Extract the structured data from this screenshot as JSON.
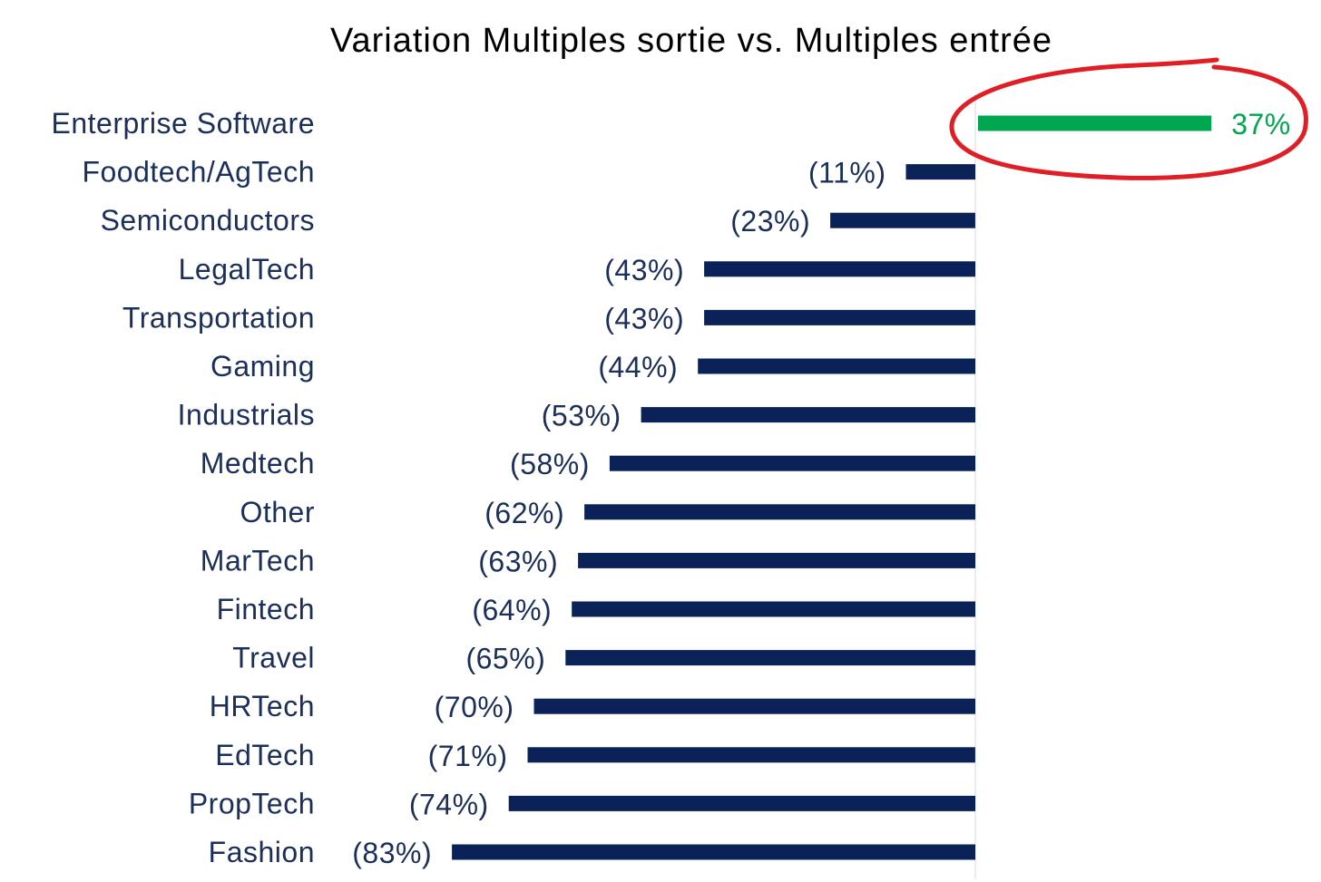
{
  "chart_data": {
    "type": "bar",
    "orientation": "horizontal",
    "title": "Variation Multiples sortie vs. Multiples entrée",
    "xlabel": "",
    "ylabel": "",
    "unit": "%",
    "xlim": [
      -83,
      37
    ],
    "grid": false,
    "legend": "none",
    "categories": [
      "Enterprise Software",
      "Foodtech/AgTech",
      "Semiconductors",
      "LegalTech",
      "Transportation",
      "Gaming",
      "Industrials",
      "Medtech",
      "Other",
      "MarTech",
      "Fintech",
      "Travel",
      "HRTech",
      "EdTech",
      "PropTech",
      "Fashion"
    ],
    "values": [
      37,
      -11,
      -23,
      -43,
      -43,
      -44,
      -53,
      -58,
      -62,
      -63,
      -64,
      -65,
      -70,
      -71,
      -74,
      -83
    ],
    "data_labels": [
      "37%",
      "(11%)",
      "(23%)",
      "(43%)",
      "(43%)",
      "(44%)",
      "(53%)",
      "(58%)",
      "(62%)",
      "(63%)",
      "(64%)",
      "(65%)",
      "(70%)",
      "(71%)",
      "(74%)",
      "(83%)"
    ],
    "colors": {
      "positive": "#00a650",
      "negative": "#0b2258",
      "label_text": "#1c2e5a",
      "highlight_circle": "#e01e26",
      "zero_line": "#e6e6e6"
    },
    "annotations": [
      {
        "type": "hand-drawn-circle",
        "target_category": "Enterprise Software"
      }
    ]
  }
}
